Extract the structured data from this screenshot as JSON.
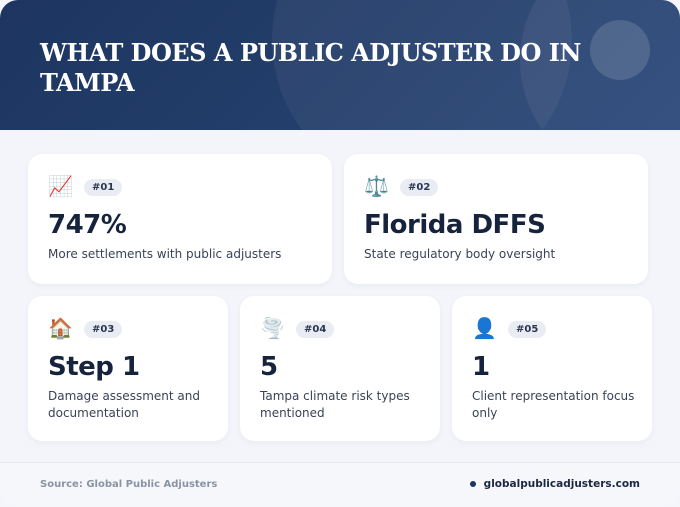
{
  "header": {
    "title": "WHAT DOES A PUBLIC ADJUSTER DO IN TAMPA"
  },
  "cards": [
    {
      "icon": "📈",
      "icon_name": "chart-increasing-icon",
      "badge": "#01",
      "value": "747%",
      "description": "More settlements with public adjusters"
    },
    {
      "icon": "⚖️",
      "icon_name": "balance-scale-icon",
      "badge": "#02",
      "value": "Florida DFFS",
      "description": "State regulatory body oversight"
    },
    {
      "icon": "🏠",
      "icon_name": "house-icon",
      "badge": "#03",
      "value": "Step 1",
      "description": "Damage assessment and documentation"
    },
    {
      "icon": "🌪️",
      "icon_name": "tornado-icon",
      "badge": "#04",
      "value": "5",
      "description": "Tampa climate risk types mentioned"
    },
    {
      "icon": "👤",
      "icon_name": "person-icon",
      "badge": "#05",
      "value": "1",
      "description": "Client representation focus only"
    }
  ],
  "footer": {
    "source": "Source: Global Public Adjusters",
    "website": "globalpublicadjusters.com"
  }
}
